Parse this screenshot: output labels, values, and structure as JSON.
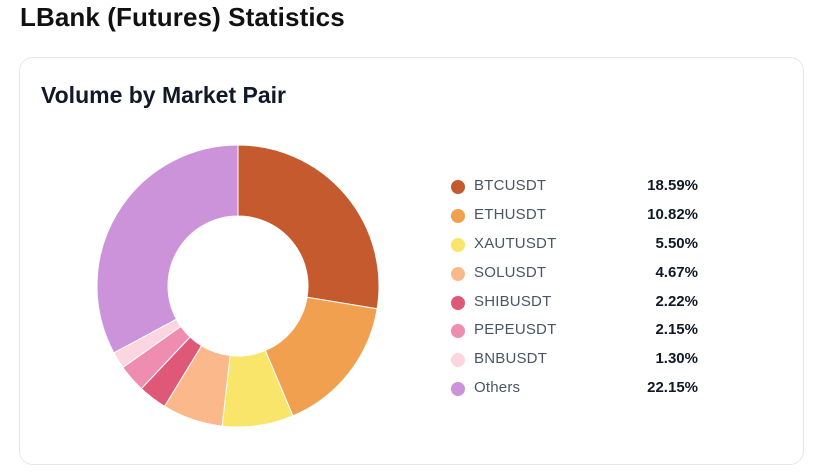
{
  "page": {
    "title": "LBank (Futures) Statistics"
  },
  "card": {
    "title": "Volume by Market Pair"
  },
  "chart_data": {
    "type": "pie",
    "variant": "donut",
    "title": "Volume by Market Pair",
    "legend_position": "right",
    "unit": "%",
    "categories": [
      "BTCUSDT",
      "ETHUSDT",
      "XAUTUSDT",
      "SOLUSDT",
      "SHIBUSDT",
      "PEPEUSDT",
      "BNBUSDT",
      "Others"
    ],
    "values": [
      18.59,
      10.82,
      5.5,
      4.67,
      2.22,
      2.15,
      1.3,
      22.15
    ],
    "labels": [
      "18.59%",
      "10.82%",
      "5.50%",
      "4.67%",
      "2.22%",
      "2.15%",
      "1.30%",
      "22.15%"
    ],
    "colors": [
      "#c65a2f",
      "#f0a04f",
      "#fae56b",
      "#fbb88b",
      "#df5877",
      "#ef8db0",
      "#fbd5df",
      "#cc92da"
    ]
  }
}
